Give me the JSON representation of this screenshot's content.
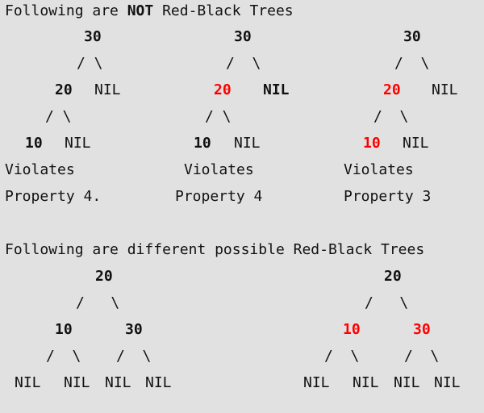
{
  "colors": {
    "background": "#e1e1e1",
    "black_node": "#111111",
    "red_node": "#ff0000"
  },
  "heading_not": {
    "prefix": "Following are ",
    "emph": "NOT",
    "suffix": " Red-Black Trees"
  },
  "heading_valid": "Following are different possible Red-Black Trees",
  "not_trees": [
    {
      "root": {
        "label": "30",
        "color": "black"
      },
      "left": {
        "label": "20",
        "color": "black"
      },
      "right_nil": {
        "label": "NIL",
        "bold": false
      },
      "grandchild": {
        "label": "10",
        "color": "black"
      },
      "grandchild_nil": "NIL",
      "edges_upper": "/ \\",
      "edges_lower": "/ \\",
      "caption_line1": "Violates",
      "caption_line2": "Property 4."
    },
    {
      "root": {
        "label": "30",
        "color": "black"
      },
      "left": {
        "label": "20",
        "color": "red"
      },
      "right_nil": {
        "label": "NIL",
        "bold": true
      },
      "grandchild": {
        "label": "10",
        "color": "black"
      },
      "grandchild_nil": "NIL",
      "edges_upper": "/  \\",
      "edges_lower": "/ \\",
      "caption_line1": "Violates",
      "caption_line2": "Property 4"
    },
    {
      "root": {
        "label": "30",
        "color": "black"
      },
      "left": {
        "label": "20",
        "color": "red"
      },
      "right_nil": {
        "label": "NIL",
        "bold": false
      },
      "grandchild": {
        "label": "10",
        "color": "red"
      },
      "grandchild_nil": "NIL",
      "edges_upper": "/  \\",
      "edges_lower": "/  \\",
      "caption_line1": "Violates",
      "caption_line2": "Property 3"
    }
  ],
  "valid_trees": [
    {
      "root": {
        "label": "20",
        "color": "black"
      },
      "left": {
        "label": "10",
        "color": "black"
      },
      "right": {
        "label": "30",
        "color": "black"
      },
      "edges_root": "/   \\",
      "edges_left": "/  \\",
      "edges_right": "/  \\",
      "nils": [
        "NIL",
        "NIL",
        "NIL",
        "NIL"
      ]
    },
    {
      "root": {
        "label": "20",
        "color": "black"
      },
      "left": {
        "label": "10",
        "color": "red"
      },
      "right": {
        "label": "30",
        "color": "red"
      },
      "edges_root": "/   \\",
      "edges_left": "/  \\",
      "edges_right": "/  \\",
      "nils": [
        "NIL",
        "NIL",
        "NIL",
        "NIL"
      ]
    }
  ]
}
